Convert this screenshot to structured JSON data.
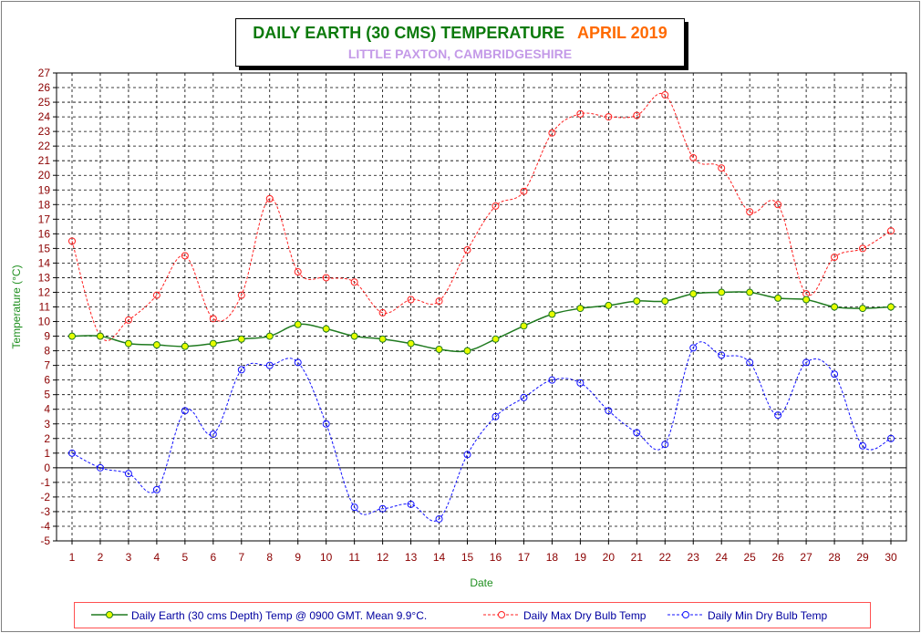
{
  "header": {
    "title": "DAILY EARTH (30 CMS) TEMPERATURE",
    "month": "APRIL 2019",
    "subtitle": "LITTLE PAXTON, CAMBRIDGESHIRE"
  },
  "colors": {
    "title": "#0b7a0b",
    "month": "#ff6a00",
    "subtitle": "#c49ae8",
    "axis_text": "#8b0000",
    "axis_title": "#1f8f1f",
    "earth_line": "#1f7a1f",
    "earth_marker": "#e6ff00",
    "max_series": "#ff2020",
    "min_series": "#1010ff",
    "legend_border": "#ff5050",
    "grid": "#000000"
  },
  "chart_data": {
    "type": "line",
    "xlabel": "Date",
    "ylabel": "Temperature (°C)",
    "x": [
      1,
      2,
      3,
      4,
      5,
      6,
      7,
      8,
      9,
      10,
      11,
      12,
      13,
      14,
      15,
      16,
      17,
      18,
      19,
      20,
      21,
      22,
      23,
      24,
      25,
      26,
      27,
      28,
      29,
      30
    ],
    "ylim": [
      -5,
      27
    ],
    "yticks": [
      -5,
      -4,
      -3,
      -2,
      -1,
      0,
      1,
      2,
      3,
      4,
      5,
      6,
      7,
      8,
      9,
      10,
      11,
      12,
      13,
      14,
      15,
      16,
      17,
      18,
      19,
      20,
      21,
      22,
      23,
      24,
      25,
      26,
      27
    ],
    "grid": true,
    "legend_position": "bottom",
    "series": [
      {
        "name": "Daily Earth (30 cms Depth) Temp @ 0900 GMT. Mean 9.9°C.",
        "style": "solid",
        "values": [
          9.0,
          9.0,
          8.5,
          8.4,
          8.3,
          8.5,
          8.8,
          9.0,
          9.8,
          9.5,
          9.0,
          8.8,
          8.5,
          8.1,
          8.0,
          8.8,
          9.7,
          10.5,
          10.9,
          11.1,
          11.4,
          11.4,
          11.9,
          12.0,
          12.0,
          11.6,
          11.5,
          11.0,
          10.9,
          11.0
        ]
      },
      {
        "name": "Daily Max Dry Bulb Temp",
        "style": "dashed",
        "values": [
          15.5,
          9.0,
          10.1,
          11.8,
          14.5,
          10.2,
          11.8,
          18.4,
          13.4,
          13.0,
          12.7,
          10.6,
          11.5,
          11.4,
          14.9,
          17.9,
          18.9,
          22.9,
          24.2,
          24.0,
          24.1,
          25.5,
          21.2,
          20.5,
          17.5,
          18.0,
          11.9,
          14.4,
          15.0,
          16.2
        ]
      },
      {
        "name": "Daily Min Dry Bulb Temp",
        "style": "dashed",
        "values": [
          1.0,
          0.0,
          -0.4,
          -1.5,
          3.9,
          2.3,
          6.7,
          7.0,
          7.2,
          3.0,
          -2.7,
          -2.8,
          -2.5,
          -3.5,
          0.9,
          3.5,
          4.8,
          6.0,
          5.8,
          3.9,
          2.4,
          1.6,
          8.2,
          7.7,
          7.2,
          3.6,
          7.2,
          6.4,
          1.5,
          2.0
        ]
      }
    ]
  }
}
